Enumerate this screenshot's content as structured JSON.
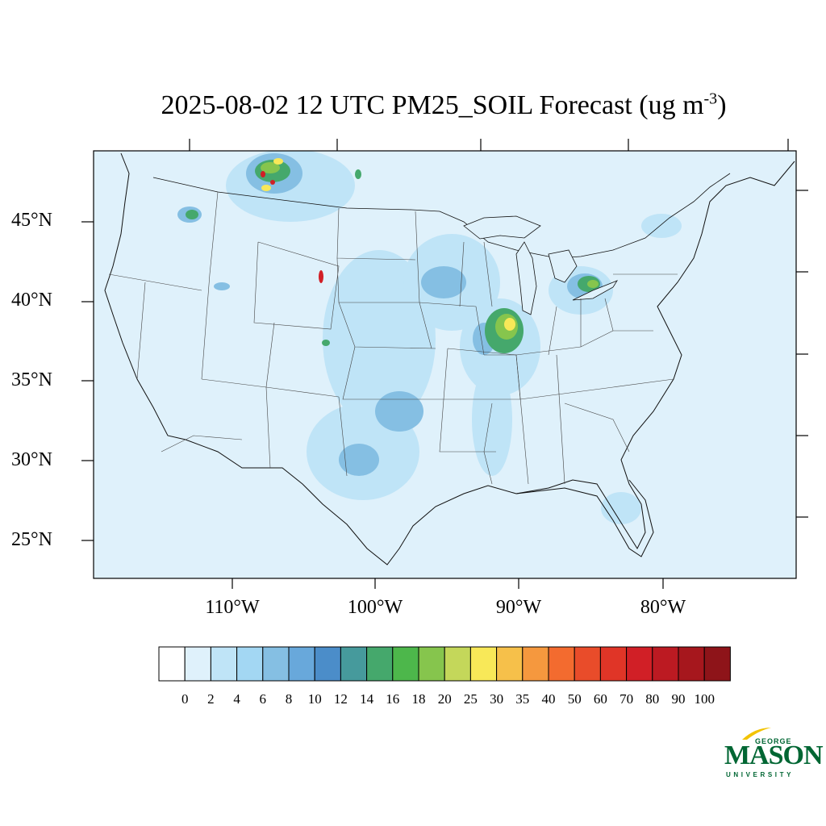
{
  "title": {
    "main": "2025-08-02 12 UTC PM25_SOIL Forecast (ug m",
    "superscript": "-3",
    "close": ")"
  },
  "map": {
    "background_color": "#dff1fb",
    "lat_labels": [
      "45°N",
      "40°N",
      "35°N",
      "30°N",
      "25°N"
    ],
    "lon_labels": [
      "110°W",
      "100°W",
      "90°W",
      "80°W"
    ]
  },
  "colorbar": {
    "colors": [
      "#ffffff",
      "#dff1fb",
      "#bfe4f7",
      "#a3d7f3",
      "#85bfe3",
      "#68a8db",
      "#4b8dc9",
      "#469a9c",
      "#45a86c",
      "#4db74b",
      "#86c54d",
      "#c4d75a",
      "#f8e858",
      "#f6c04a",
      "#f5983e",
      "#f36b2f",
      "#e94c2a",
      "#e03527",
      "#d11f26",
      "#bc1a22",
      "#a6171d",
      "#8e1419"
    ],
    "labels": [
      "0",
      "2",
      "4",
      "6",
      "8",
      "10",
      "12",
      "14",
      "16",
      "18",
      "20",
      "25",
      "30",
      "35",
      "40",
      "50",
      "60",
      "70",
      "80",
      "90",
      "100"
    ]
  },
  "logo": {
    "top": "GEORGE",
    "main": "MASON",
    "bottom": "UNIVERSITY",
    "green": "#006633",
    "gold": "#f2c300"
  }
}
